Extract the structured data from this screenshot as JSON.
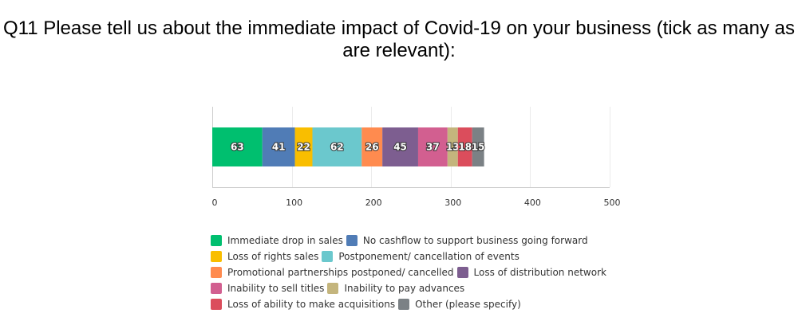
{
  "page": {
    "title": "Q11 Please tell us about the immediate impact of Covid-19 on your business (tick as many as are relevant):"
  },
  "chart_data": {
    "type": "bar",
    "orientation": "horizontal",
    "stacked": true,
    "title": "Q11 Please tell us about the immediate impact of Covid-19 on your business (tick as many as are relevant):",
    "xlabel": "",
    "ylabel": "",
    "xlim": [
      0,
      500
    ],
    "x_ticks": [
      0,
      100,
      200,
      300,
      400,
      500
    ],
    "x_tick_labels": [
      "0",
      "100",
      "200",
      "300",
      "400",
      "500"
    ],
    "categories": [
      ""
    ],
    "grid": true,
    "legend_position": "bottom",
    "series": [
      {
        "name": "Immediate drop in sales",
        "values": [
          63
        ],
        "color": "#00bf6f"
      },
      {
        "name": "No cashflow to support business going forward",
        "values": [
          41
        ],
        "color": "#507cb6"
      },
      {
        "name": "Loss of rights sales",
        "values": [
          22
        ],
        "color": "#f9be00"
      },
      {
        "name": "Postponement/ cancellation of events",
        "values": [
          62
        ],
        "color": "#6bc8cd"
      },
      {
        "name": "Promotional partnerships postponed/ cancelled",
        "values": [
          26
        ],
        "color": "#ff8b4f"
      },
      {
        "name": "Loss of distribution network",
        "values": [
          45
        ],
        "color": "#7d5e90"
      },
      {
        "name": "Inability to sell titles",
        "values": [
          37
        ],
        "color": "#d25f90"
      },
      {
        "name": "Inability to pay advances",
        "values": [
          13
        ],
        "color": "#c4b57d"
      },
      {
        "name": "Loss of ability to make acquisitions",
        "values": [
          18
        ],
        "color": "#db4d5c"
      },
      {
        "name": "Other (please specify)",
        "values": [
          15
        ],
        "color": "#7b8185"
      }
    ],
    "legend_rows": [
      [
        0,
        1
      ],
      [
        2,
        3
      ],
      [
        4,
        5
      ],
      [
        6,
        7
      ],
      [
        8,
        9
      ]
    ]
  }
}
